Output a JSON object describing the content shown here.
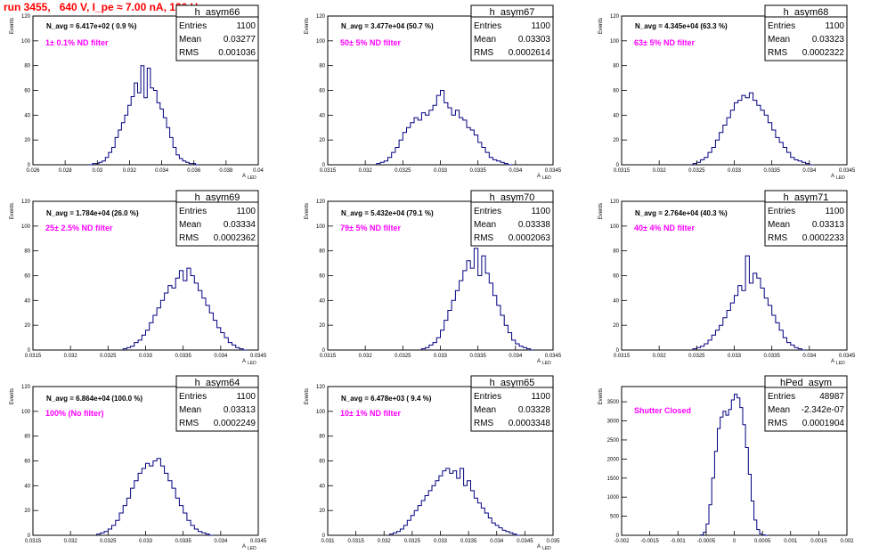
{
  "page": {
    "title": "run 3455,   640 V, I_pe ≈ 7.00 nA, 120 Hz"
  },
  "colors": {
    "histogram": "#000080",
    "title": "#ff0000",
    "annotation": "#ff00ff",
    "frame": "#000000"
  },
  "chart_data": [
    {
      "type": "histogram",
      "name": "h_asym66",
      "stats": {
        "entries_label": "Entries",
        "mean_label": "Mean",
        "rms_label": "RMS",
        "entries": "1100",
        "mean": "0.03277",
        "rms": "0.001036"
      },
      "navg_text": "N_avg = 6.417e+02 ( 0.9 %)",
      "filter_text": "1± 0.1% ND filter",
      "xlabel": "A_{LED}",
      "ylabel": "Events",
      "xlim": [
        0.026,
        0.04
      ],
      "ylim": [
        0,
        120
      ],
      "xticks": [
        0.026,
        0.028,
        0.03,
        0.032,
        0.034,
        0.036,
        0.038,
        0.04
      ],
      "xtick_labels": [
        "0.026",
        "0.028",
        "0.03",
        "0.032",
        "0.034",
        "0.036",
        "0.038",
        "0.04"
      ],
      "yticks": [
        0,
        20,
        40,
        60,
        80,
        100,
        120
      ],
      "ytick_labels": [
        "0",
        "20",
        "40",
        "60",
        "80",
        "100",
        "120"
      ],
      "bins": {
        "start": 0.0295,
        "width": 0.0002,
        "counts": [
          0,
          1,
          1,
          2,
          3,
          6,
          10,
          14,
          22,
          28,
          34,
          40,
          48,
          55,
          66,
          58,
          80,
          54,
          78,
          62,
          60,
          50,
          45,
          38,
          30,
          22,
          14,
          8,
          5,
          3,
          2,
          1,
          1,
          0
        ]
      }
    },
    {
      "type": "histogram",
      "name": "h_asym67",
      "stats": {
        "entries_label": "Entries",
        "mean_label": "Mean",
        "rms_label": "RMS",
        "entries": "1100",
        "mean": "0.03303",
        "rms": "0.0002614"
      },
      "navg_text": "N_avg = 3.477e+04 (50.7 %)",
      "filter_text": "50± 5% ND filter",
      "xlabel": "A_{LED}",
      "ylabel": "Events",
      "xlim": [
        0.0315,
        0.0345
      ],
      "ylim": [
        0,
        120
      ],
      "xticks": [
        0.0315,
        0.032,
        0.0325,
        0.033,
        0.0335,
        0.034,
        0.0345
      ],
      "xtick_labels": [
        "0.0315",
        "0.032",
        "0.0325",
        "0.033",
        "0.0335",
        "0.034",
        "0.0345"
      ],
      "yticks": [
        0,
        20,
        40,
        60,
        80,
        100,
        120
      ],
      "ytick_labels": [
        "0",
        "20",
        "40",
        "60",
        "80",
        "100",
        "120"
      ],
      "bins": {
        "start": 0.03215,
        "width": 5e-05,
        "counts": [
          1,
          2,
          3,
          6,
          10,
          14,
          20,
          26,
          30,
          34,
          38,
          36,
          42,
          40,
          44,
          48,
          56,
          60,
          50,
          46,
          40,
          44,
          38,
          36,
          30,
          28,
          24,
          18,
          14,
          10,
          6,
          4,
          3,
          2,
          1,
          0
        ]
      }
    },
    {
      "type": "histogram",
      "name": "h_asym68",
      "stats": {
        "entries_label": "Entries",
        "mean_label": "Mean",
        "rms_label": "RMS",
        "entries": "1100",
        "mean": "0.03323",
        "rms": "0.0002322"
      },
      "navg_text": "N_avg = 4.345e+04 (63.3 %)",
      "filter_text": "63± 5% ND filter",
      "xlabel": "A_{LED}",
      "ylabel": "Events",
      "xlim": [
        0.0315,
        0.0345
      ],
      "ylim": [
        0,
        120
      ],
      "xticks": [
        0.0315,
        0.032,
        0.0325,
        0.033,
        0.0335,
        0.034,
        0.0345
      ],
      "xtick_labels": [
        "0.0315",
        "0.032",
        "0.0325",
        "0.033",
        "0.0335",
        "0.034",
        "0.0345"
      ],
      "yticks": [
        0,
        20,
        40,
        60,
        80,
        100,
        120
      ],
      "ytick_labels": [
        "0",
        "20",
        "40",
        "60",
        "80",
        "100",
        "120"
      ],
      "bins": {
        "start": 0.03245,
        "width": 5e-05,
        "counts": [
          1,
          2,
          4,
          6,
          10,
          14,
          20,
          26,
          32,
          38,
          44,
          50,
          52,
          56,
          54,
          58,
          52,
          48,
          44,
          40,
          34,
          28,
          22,
          18,
          14,
          10,
          6,
          4,
          3,
          2,
          1,
          0
        ]
      }
    },
    {
      "type": "histogram",
      "name": "h_asym69",
      "stats": {
        "entries_label": "Entries",
        "mean_label": "Mean",
        "rms_label": "RMS",
        "entries": "1100",
        "mean": "0.03334",
        "rms": "0.0002362"
      },
      "navg_text": "N_avg = 1.784e+04 (26.0 %)",
      "filter_text": "25± 2.5% ND filter",
      "xlabel": "A_{LED}",
      "ylabel": "Events",
      "xlim": [
        0.0315,
        0.0345
      ],
      "ylim": [
        0,
        120
      ],
      "xticks": [
        0.0315,
        0.032,
        0.0325,
        0.033,
        0.0335,
        0.034,
        0.0345
      ],
      "xtick_labels": [
        "0.0315",
        "0.032",
        "0.0325",
        "0.033",
        "0.0335",
        "0.034",
        "0.0345"
      ],
      "yticks": [
        0,
        20,
        40,
        60,
        80,
        100,
        120
      ],
      "ytick_labels": [
        "0",
        "20",
        "40",
        "60",
        "80",
        "100",
        "120"
      ],
      "bins": {
        "start": 0.0327,
        "width": 5e-05,
        "counts": [
          1,
          2,
          3,
          6,
          8,
          12,
          16,
          22,
          28,
          34,
          40,
          46,
          52,
          50,
          58,
          64,
          56,
          66,
          60,
          54,
          48,
          42,
          36,
          30,
          24,
          18,
          14,
          10,
          6,
          4,
          2,
          1,
          0
        ]
      }
    },
    {
      "type": "histogram",
      "name": "h_asym70",
      "stats": {
        "entries_label": "Entries",
        "mean_label": "Mean",
        "rms_label": "RMS",
        "entries": "1100",
        "mean": "0.03338",
        "rms": "0.0002063"
      },
      "navg_text": "N_avg = 5.432e+04 (79.1 %)",
      "filter_text": "79± 5% ND filter",
      "xlabel": "A_{LED}",
      "ylabel": "Events",
      "xlim": [
        0.0315,
        0.0345
      ],
      "ylim": [
        0,
        120
      ],
      "xticks": [
        0.0315,
        0.032,
        0.0325,
        0.033,
        0.0335,
        0.034,
        0.0345
      ],
      "xtick_labels": [
        "0.0315",
        "0.032",
        "0.0325",
        "0.033",
        "0.0335",
        "0.034",
        "0.0345"
      ],
      "yticks": [
        0,
        20,
        40,
        60,
        80,
        100,
        120
      ],
      "ytick_labels": [
        "0",
        "20",
        "40",
        "60",
        "80",
        "100",
        "120"
      ],
      "bins": {
        "start": 0.03275,
        "width": 5e-05,
        "counts": [
          1,
          2,
          4,
          6,
          10,
          16,
          24,
          32,
          40,
          48,
          56,
          64,
          72,
          66,
          82,
          60,
          76,
          62,
          54,
          44,
          36,
          28,
          20,
          14,
          8,
          5,
          3,
          2,
          1,
          0
        ]
      }
    },
    {
      "type": "histogram",
      "name": "h_asym71",
      "stats": {
        "entries_label": "Entries",
        "mean_label": "Mean",
        "rms_label": "RMS",
        "entries": "1100",
        "mean": "0.03313",
        "rms": "0.0002233"
      },
      "navg_text": "N_avg = 2.764e+04 (40.3 %)",
      "filter_text": "40± 4% ND filter",
      "xlabel": "A_{LED}",
      "ylabel": "Events",
      "xlim": [
        0.0315,
        0.0345
      ],
      "ylim": [
        0,
        120
      ],
      "xticks": [
        0.0315,
        0.032,
        0.0325,
        0.033,
        0.0335,
        0.034,
        0.0345
      ],
      "xtick_labels": [
        "0.0315",
        "0.032",
        "0.0325",
        "0.033",
        "0.0335",
        "0.034",
        "0.0345"
      ],
      "yticks": [
        0,
        20,
        40,
        60,
        80,
        100,
        120
      ],
      "ytick_labels": [
        "0",
        "20",
        "40",
        "60",
        "80",
        "100",
        "120"
      ],
      "bins": {
        "start": 0.03245,
        "width": 5e-05,
        "counts": [
          1,
          2,
          3,
          5,
          8,
          12,
          16,
          20,
          26,
          32,
          38,
          44,
          52,
          48,
          76,
          54,
          62,
          58,
          50,
          42,
          36,
          28,
          22,
          16,
          10,
          6,
          4,
          2,
          1,
          0
        ]
      }
    },
    {
      "type": "histogram",
      "name": "h_asym64",
      "stats": {
        "entries_label": "Entries",
        "mean_label": "Mean",
        "rms_label": "RMS",
        "entries": "1100",
        "mean": "0.03313",
        "rms": "0.0002249"
      },
      "navg_text": "N_avg = 6.864e+04 (100.0 %)",
      "filter_text": "100% (No filter)",
      "xlabel": "A_{LED}",
      "ylabel": "Events",
      "xlim": [
        0.0315,
        0.0345
      ],
      "ylim": [
        0,
        120
      ],
      "xticks": [
        0.0315,
        0.032,
        0.0325,
        0.033,
        0.0335,
        0.034,
        0.0345
      ],
      "xtick_labels": [
        "0.0315",
        "0.032",
        "0.0325",
        "0.033",
        "0.0335",
        "0.034",
        "0.0345"
      ],
      "yticks": [
        0,
        20,
        40,
        60,
        80,
        100,
        120
      ],
      "ytick_labels": [
        "0",
        "20",
        "40",
        "60",
        "80",
        "100",
        "120"
      ],
      "bins": {
        "start": 0.03235,
        "width": 5e-05,
        "counts": [
          1,
          2,
          3,
          5,
          8,
          12,
          18,
          24,
          30,
          38,
          44,
          50,
          54,
          58,
          56,
          60,
          62,
          56,
          50,
          44,
          38,
          30,
          24,
          18,
          12,
          8,
          5,
          3,
          2,
          1,
          0
        ]
      }
    },
    {
      "type": "histogram",
      "name": "h_asym65",
      "stats": {
        "entries_label": "Entries",
        "mean_label": "Mean",
        "rms_label": "RMS",
        "entries": "1100",
        "mean": "0.03328",
        "rms": "0.0003348"
      },
      "navg_text": "N_avg = 6.478e+03 ( 9.4 %)",
      "filter_text": "10± 1% ND filter",
      "xlabel": "A_{LED}",
      "ylabel": "Events",
      "xlim": [
        0.031,
        0.035
      ],
      "ylim": [
        0,
        120
      ],
      "xticks": [
        0.031,
        0.0315,
        0.032,
        0.0325,
        0.033,
        0.0335,
        0.034,
        0.0345,
        0.035
      ],
      "xtick_labels": [
        "0.031",
        "0.0315",
        "0.032",
        "0.0325",
        "0.033",
        "0.0335",
        "0.034",
        "0.0345",
        "0.035"
      ],
      "yticks": [
        0,
        20,
        40,
        60,
        80,
        100,
        120
      ],
      "ytick_labels": [
        "0",
        "20",
        "40",
        "60",
        "80",
        "100",
        "120"
      ],
      "bins": {
        "start": 0.0321,
        "width": 6.25e-05,
        "counts": [
          1,
          2,
          3,
          5,
          8,
          12,
          16,
          20,
          24,
          28,
          32,
          36,
          40,
          44,
          48,
          52,
          54,
          50,
          52,
          46,
          54,
          40,
          44,
          36,
          30,
          26,
          22,
          18,
          14,
          10,
          8,
          6,
          4,
          3,
          2,
          1,
          0
        ]
      }
    },
    {
      "type": "histogram",
      "name": "hPed_asym",
      "stats": {
        "entries_label": "Entries",
        "mean_label": "Mean",
        "rms_label": "RMS",
        "entries": "48987",
        "mean": "-2.342e-07",
        "rms": "0.0001904"
      },
      "navg_text": "",
      "filter_text": "Shutter Closed",
      "xlabel": "",
      "ylabel": "Events",
      "xlim": [
        -0.002,
        0.002
      ],
      "ylim": [
        0,
        3900
      ],
      "xticks": [
        -0.002,
        -0.0015,
        -0.001,
        -0.0005,
        0,
        0.0005,
        0.001,
        0.0015,
        0.002
      ],
      "xtick_labels": [
        "-0.002",
        "-0.0015",
        "-0.001",
        "-0.0005",
        "0",
        "0.0005",
        "0.001",
        "0.0015",
        "0.002"
      ],
      "yticks": [
        0,
        500,
        1000,
        1500,
        2000,
        2500,
        3000,
        3500
      ],
      "ytick_labels": [
        "0",
        "500",
        "1000",
        "1500",
        "2000",
        "2500",
        "3000",
        "3500"
      ],
      "bins": {
        "start": -0.0006,
        "width": 5e-05,
        "counts": [
          10,
          80,
          300,
          800,
          1500,
          2200,
          2800,
          3100,
          3250,
          3150,
          3300,
          3550,
          3700,
          3600,
          3350,
          2900,
          2300,
          1600,
          900,
          400,
          150,
          40,
          10,
          0
        ]
      }
    }
  ]
}
